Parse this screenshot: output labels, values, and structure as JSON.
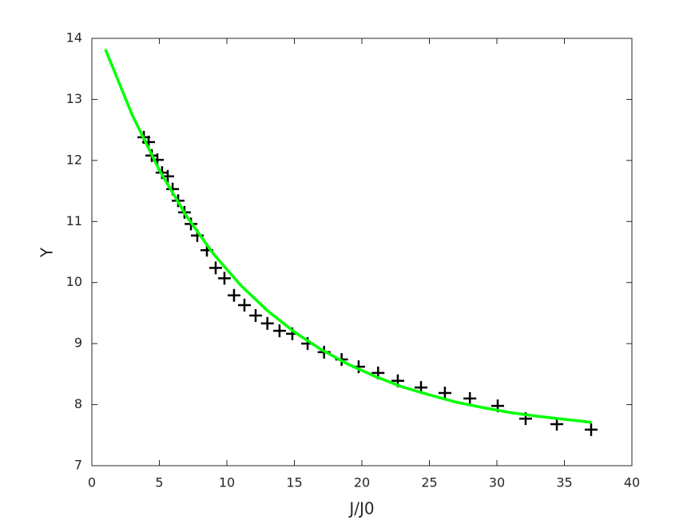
{
  "chart_data": {
    "type": "scatter",
    "xlabel": "J/J0",
    "ylabel": "Y",
    "xlim": [
      0,
      40
    ],
    "xticks": [
      0,
      5,
      10,
      15,
      20,
      25,
      30,
      35,
      40
    ],
    "ylim": [
      7,
      14
    ],
    "yticks": [
      7,
      8,
      9,
      10,
      11,
      12,
      13,
      14
    ],
    "grid": false,
    "box": true,
    "series": [
      {
        "type": "scatter",
        "color": "#000000",
        "x": [
          3.85,
          4.2,
          4.44,
          4.85,
          5.2,
          5.62,
          5.98,
          6.39,
          6.86,
          7.34,
          7.81,
          8.52,
          9.17,
          9.82,
          10.53,
          11.3,
          12.13,
          13.0,
          13.9,
          14.85,
          15.98,
          17.2,
          18.5,
          19.76,
          21.2,
          22.66,
          24.38,
          26.15,
          28.0,
          30.06,
          32.13,
          34.44,
          36.98
        ],
        "values": [
          12.38,
          12.3,
          12.08,
          12.01,
          11.8,
          11.74,
          11.53,
          11.34,
          11.15,
          10.96,
          10.77,
          10.53,
          10.24,
          10.07,
          9.79,
          9.63,
          9.46,
          9.33,
          9.21,
          9.16,
          9.0,
          8.86,
          8.74,
          8.62,
          8.52,
          8.39,
          8.28,
          8.19,
          8.1,
          7.98,
          7.77,
          7.68,
          7.59
        ]
      },
      {
        "type": "line",
        "color": "#00ff00",
        "x": [
          1,
          3,
          5,
          7,
          9,
          11,
          13,
          15,
          17,
          19,
          21,
          23,
          25,
          27,
          29,
          31,
          33,
          35,
          37
        ],
        "values": [
          13.82,
          12.74,
          11.84,
          11.09,
          10.47,
          9.96,
          9.54,
          9.19,
          8.9,
          8.66,
          8.46,
          8.29,
          8.16,
          8.04,
          7.95,
          7.87,
          7.81,
          7.76,
          7.71
        ]
      }
    ]
  }
}
